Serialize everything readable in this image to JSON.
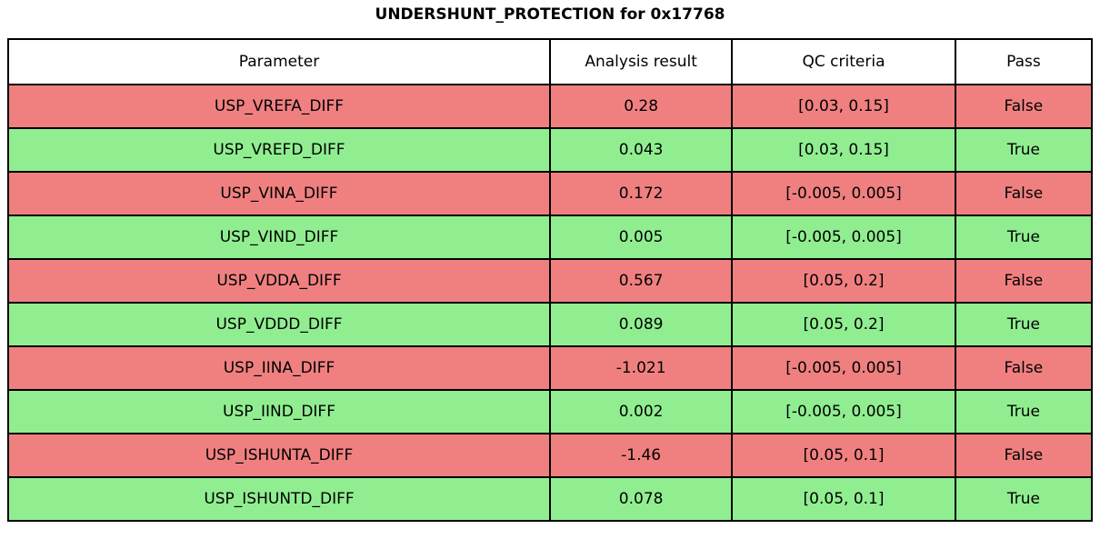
{
  "title": "UNDERSHUNT_PROTECTION for 0x17768",
  "chart_data": {
    "type": "table",
    "title": "UNDERSHUNT_PROTECTION for 0x17768",
    "columns": [
      "Parameter",
      "Analysis result",
      "QC criteria",
      "Pass"
    ],
    "rows": [
      {
        "parameter": "USP_VREFA_DIFF",
        "analysis_result": "0.28",
        "qc_criteria": "[0.03, 0.15]",
        "pass": "False"
      },
      {
        "parameter": "USP_VREFD_DIFF",
        "analysis_result": "0.043",
        "qc_criteria": "[0.03, 0.15]",
        "pass": "True"
      },
      {
        "parameter": "USP_VINA_DIFF",
        "analysis_result": "0.172",
        "qc_criteria": "[-0.005, 0.005]",
        "pass": "False"
      },
      {
        "parameter": "USP_VIND_DIFF",
        "analysis_result": "0.005",
        "qc_criteria": "[-0.005, 0.005]",
        "pass": "True"
      },
      {
        "parameter": "USP_VDDA_DIFF",
        "analysis_result": "0.567",
        "qc_criteria": "[0.05, 0.2]",
        "pass": "False"
      },
      {
        "parameter": "USP_VDDD_DIFF",
        "analysis_result": "0.089",
        "qc_criteria": "[0.05, 0.2]",
        "pass": "True"
      },
      {
        "parameter": "USP_IINA_DIFF",
        "analysis_result": "-1.021",
        "qc_criteria": "[-0.005, 0.005]",
        "pass": "False"
      },
      {
        "parameter": "USP_IIND_DIFF",
        "analysis_result": "0.002",
        "qc_criteria": "[-0.005, 0.005]",
        "pass": "True"
      },
      {
        "parameter": "USP_ISHUNTA_DIFF",
        "analysis_result": "-1.46",
        "qc_criteria": "[0.05, 0.1]",
        "pass": "False"
      },
      {
        "parameter": "USP_ISHUNTD_DIFF",
        "analysis_result": "0.078",
        "qc_criteria": "[0.05, 0.1]",
        "pass": "True"
      }
    ],
    "colors": {
      "pass_row": "#90EE90",
      "fail_row": "#F08080",
      "header_bg": "#FFFFFF",
      "border": "#000000"
    },
    "layout": {
      "legend_position": "none",
      "grid": "full-borders"
    }
  }
}
